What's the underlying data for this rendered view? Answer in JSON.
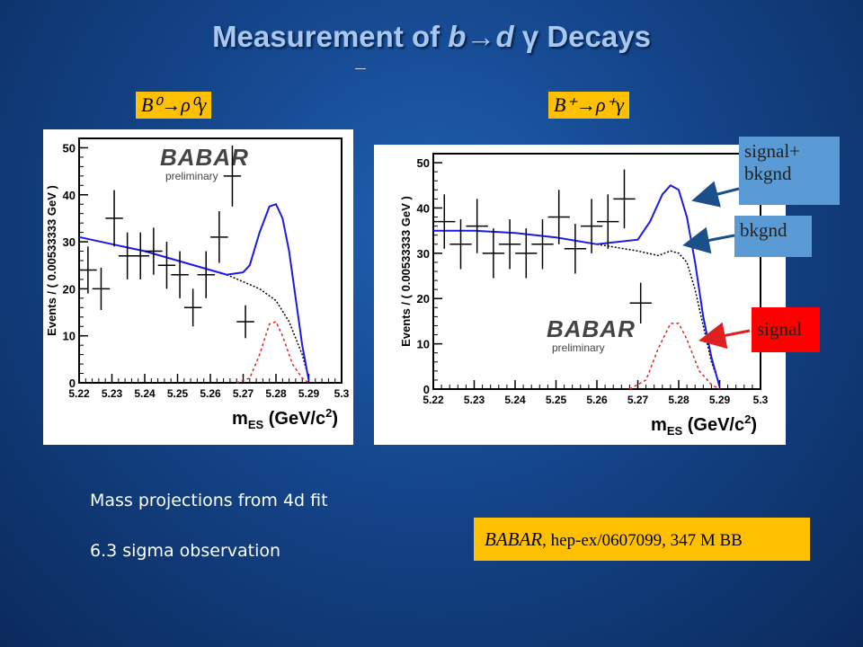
{
  "slide": {
    "title_pre": "Measurement of ",
    "title_b": "b",
    "title_arrow": "→",
    "title_d": "d ",
    "title_gamma": "γ",
    "title_post": " Decays",
    "label_left": "B⁰→ρ⁰γ",
    "label_right": "B⁺→ρ⁺γ",
    "legend_sigbkg": "signal+ bkgnd",
    "legend_bkg": "bkgnd",
    "legend_sig": "signal",
    "bottom_line1": "Mass projections from 4d fit",
    "bottom_line2": "6.3 sigma observation",
    "ref_babar": "BABAR",
    "ref_rest": ", hep-ex/0607099, 347 M BB",
    "colors": {
      "label_bg": "#ffc000",
      "sigbkg_bg": "#5b9bd5",
      "bkg_bg": "#5b9bd5",
      "sig_bg": "#ff0000",
      "fit": "#1a1ae6",
      "signal_curve": "#e02020"
    }
  },
  "chart_data": [
    {
      "type": "scatter",
      "name": "B0 rho0 gamma",
      "ylabel": "Events / ( 0.00533333 GeV )",
      "xlabel_m": "m",
      "xlabel_sub": "ES",
      "xlabel_units": " (GeV/c",
      "xlabel_sup": "2",
      "xlabel_close": ")",
      "watermark": "BABAR",
      "watermark_sub": "preliminary",
      "xlim": [
        5.22,
        5.3
      ],
      "ylim": [
        0,
        52
      ],
      "xticks": [
        "5.22",
        "5.23",
        "5.24",
        "5.25",
        "5.26",
        "5.27",
        "5.28",
        "5.29",
        "5.3"
      ],
      "yticks": [
        "0",
        "10",
        "20",
        "30",
        "40",
        "50"
      ],
      "points": [
        {
          "x": 5.2227,
          "y": 24,
          "ey": 5
        },
        {
          "x": 5.2267,
          "y": 20,
          "ey": 4.5
        },
        {
          "x": 5.2307,
          "y": 35,
          "ey": 6
        },
        {
          "x": 5.2347,
          "y": 27,
          "ey": 5
        },
        {
          "x": 5.2387,
          "y": 27,
          "ey": 5
        },
        {
          "x": 5.2427,
          "y": 28,
          "ey": 5
        },
        {
          "x": 5.2467,
          "y": 25,
          "ey": 5
        },
        {
          "x": 5.2507,
          "y": 23,
          "ey": 5
        },
        {
          "x": 5.2547,
          "y": 16,
          "ey": 4
        },
        {
          "x": 5.2587,
          "y": 23,
          "ey": 5
        },
        {
          "x": 5.2627,
          "y": 31,
          "ey": 5.5
        },
        {
          "x": 5.2667,
          "y": 44,
          "ey": 6.5
        },
        {
          "x": 5.2707,
          "y": 13,
          "ey": 3.5
        }
      ],
      "fit_total": [
        [
          5.22,
          31
        ],
        [
          5.23,
          29.5
        ],
        [
          5.24,
          28
        ],
        [
          5.25,
          26
        ],
        [
          5.26,
          24
        ],
        [
          5.265,
          23
        ],
        [
          5.27,
          23.5
        ],
        [
          5.272,
          25
        ],
        [
          5.275,
          32
        ],
        [
          5.278,
          37.5
        ],
        [
          5.28,
          38
        ],
        [
          5.282,
          35
        ],
        [
          5.284,
          28
        ],
        [
          5.286,
          18
        ],
        [
          5.288,
          8
        ],
        [
          5.29,
          0.5
        ]
      ],
      "fit_bkg": [
        [
          5.265,
          23
        ],
        [
          5.27,
          21.5
        ],
        [
          5.275,
          20
        ],
        [
          5.28,
          17.5
        ],
        [
          5.284,
          13
        ],
        [
          5.288,
          6
        ],
        [
          5.29,
          1
        ]
      ],
      "fit_signal": [
        [
          5.268,
          0
        ],
        [
          5.272,
          1
        ],
        [
          5.275,
          6
        ],
        [
          5.278,
          12.5
        ],
        [
          5.28,
          13
        ],
        [
          5.282,
          10
        ],
        [
          5.285,
          4
        ],
        [
          5.288,
          1
        ],
        [
          5.29,
          0
        ]
      ]
    },
    {
      "type": "scatter",
      "name": "B+ rho+ gamma",
      "ylabel": "Events / ( 0.00533333 GeV )",
      "xlabel_m": "m",
      "xlabel_sub": "ES",
      "xlabel_units": " (GeV/c",
      "xlabel_sup": "2",
      "xlabel_close": ")",
      "watermark": "BABAR",
      "watermark_sub": "preliminary",
      "xlim": [
        5.22,
        5.3
      ],
      "ylim": [
        0,
        52
      ],
      "xticks": [
        "5.22",
        "5.23",
        "5.24",
        "5.25",
        "5.26",
        "5.27",
        "5.28",
        "5.29",
        "5.3"
      ],
      "yticks": [
        "0",
        "10",
        "20",
        "30",
        "40",
        "50"
      ],
      "points": [
        {
          "x": 5.2227,
          "y": 37,
          "ey": 6
        },
        {
          "x": 5.2267,
          "y": 32,
          "ey": 5.5
        },
        {
          "x": 5.2307,
          "y": 36,
          "ey": 6
        },
        {
          "x": 5.2347,
          "y": 30,
          "ey": 5.5
        },
        {
          "x": 5.2387,
          "y": 32,
          "ey": 5.5
        },
        {
          "x": 5.2427,
          "y": 30,
          "ey": 5.5
        },
        {
          "x": 5.2467,
          "y": 32,
          "ey": 5.5
        },
        {
          "x": 5.2507,
          "y": 38,
          "ey": 6
        },
        {
          "x": 5.2547,
          "y": 31,
          "ey": 5.5
        },
        {
          "x": 5.2587,
          "y": 36,
          "ey": 6
        },
        {
          "x": 5.2627,
          "y": 37,
          "ey": 6
        },
        {
          "x": 5.2667,
          "y": 42,
          "ey": 6.5
        },
        {
          "x": 5.2707,
          "y": 19,
          "ey": 4.5
        }
      ],
      "fit_total": [
        [
          5.22,
          35
        ],
        [
          5.23,
          35
        ],
        [
          5.24,
          34.5
        ],
        [
          5.25,
          33.5
        ],
        [
          5.26,
          32
        ],
        [
          5.27,
          33
        ],
        [
          5.273,
          37
        ],
        [
          5.276,
          43
        ],
        [
          5.278,
          45
        ],
        [
          5.28,
          44
        ],
        [
          5.282,
          38
        ],
        [
          5.284,
          28
        ],
        [
          5.286,
          16
        ],
        [
          5.288,
          7
        ],
        [
          5.29,
          0.5
        ]
      ],
      "fit_bkg": [
        [
          5.26,
          32
        ],
        [
          5.27,
          30.5
        ],
        [
          5.275,
          29.5
        ],
        [
          5.278,
          30.5
        ],
        [
          5.28,
          30
        ],
        [
          5.282,
          28
        ],
        [
          5.284,
          22
        ],
        [
          5.286,
          14
        ],
        [
          5.288,
          6
        ],
        [
          5.29,
          1
        ]
      ],
      "fit_signal": [
        [
          5.268,
          0
        ],
        [
          5.272,
          2
        ],
        [
          5.275,
          9
        ],
        [
          5.278,
          14.5
        ],
        [
          5.28,
          14.5
        ],
        [
          5.282,
          11
        ],
        [
          5.285,
          4
        ],
        [
          5.288,
          1
        ],
        [
          5.29,
          0
        ]
      ]
    }
  ]
}
